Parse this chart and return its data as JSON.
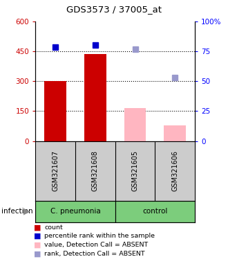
{
  "title": "GDS3573 / 37005_at",
  "samples": [
    "GSM321607",
    "GSM321608",
    "GSM321605",
    "GSM321606"
  ],
  "group_labels": [
    "C. pneumonia",
    "control"
  ],
  "group_color": "#7CCD7C",
  "count_values": [
    300,
    435,
    null,
    null
  ],
  "count_color": "#CC0000",
  "absent_value_values": [
    null,
    null,
    165,
    78
  ],
  "absent_value_color": "#FFB6C1",
  "percentile_rank_values": [
    470,
    480,
    null,
    null
  ],
  "percentile_rank_color": "#0000CC",
  "absent_rank_values": [
    null,
    null,
    460,
    318
  ],
  "absent_rank_color": "#9999CC",
  "ylim_left": [
    0,
    600
  ],
  "yticks_left": [
    0,
    150,
    300,
    450,
    600
  ],
  "ytick_labels_left": [
    "0",
    "150",
    "300",
    "450",
    "600"
  ],
  "right_tick_positions": [
    0,
    150,
    300,
    450,
    600
  ],
  "right_tick_labels": [
    "0",
    "25",
    "50",
    "75",
    "100%"
  ],
  "dotted_lines": [
    150,
    300,
    450
  ],
  "sample_label_color": "#CCCCCC",
  "marker_size": 6,
  "bar_width": 0.55,
  "legend_items": [
    {
      "color": "#CC0000",
      "label": "count"
    },
    {
      "color": "#0000CC",
      "label": "percentile rank within the sample"
    },
    {
      "color": "#FFB6C1",
      "label": "value, Detection Call = ABSENT"
    },
    {
      "color": "#9999CC",
      "label": "rank, Detection Call = ABSENT"
    }
  ]
}
